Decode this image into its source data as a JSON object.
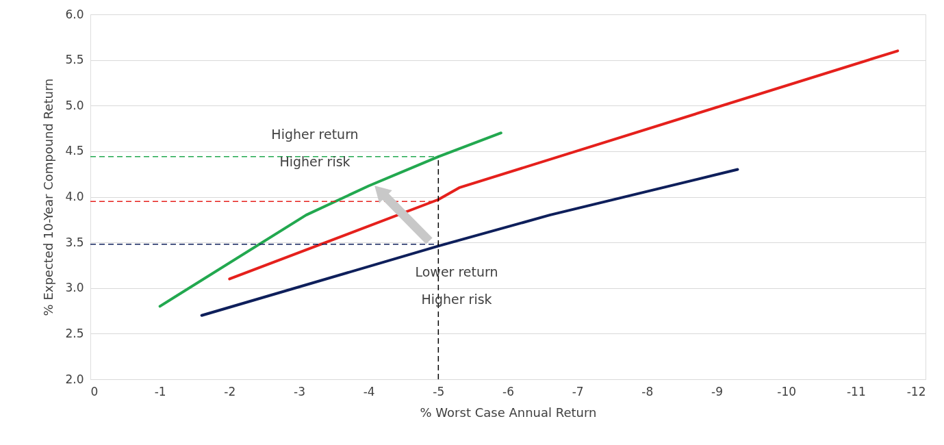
{
  "chart_data": {
    "type": "line",
    "xlabel": "% Worst Case Annual Return",
    "ylabel": "% Expected 10-Year Compound Return",
    "xlim": [
      0,
      -12
    ],
    "xticks": [
      0,
      -1,
      -2,
      -3,
      -4,
      -5,
      -6,
      -7,
      -8,
      -9,
      -10,
      -11,
      -12
    ],
    "ylim": [
      2.0,
      6.0
    ],
    "yticks": [
      {
        "value": 2.0,
        "label": "2.0"
      },
      {
        "value": 2.5,
        "label": "2.5"
      },
      {
        "value": 3.0,
        "label": "3.0"
      },
      {
        "value": 3.5,
        "label": "3.5"
      },
      {
        "value": 4.0,
        "label": "4.0"
      },
      {
        "value": 4.5,
        "label": "4.5"
      },
      {
        "value": 5.0,
        "label": "5.0"
      },
      {
        "value": 5.5,
        "label": "5.5"
      },
      {
        "value": 6.0,
        "label": "6.0"
      }
    ],
    "grid": "y",
    "legend": false,
    "marker": "none",
    "line_style": "solid",
    "series": [
      {
        "color": "#22a84f",
        "x": [
          -1.0,
          -3.1,
          -4.0,
          -5.0,
          -5.9
        ],
        "values": [
          2.8,
          3.8,
          4.12,
          4.44,
          4.7
        ]
      },
      {
        "color": "#e5201c",
        "x": [
          -2.0,
          -5.0,
          -5.3,
          -11.6
        ],
        "values": [
          3.1,
          3.97,
          4.1,
          5.6
        ]
      },
      {
        "color": "#0e1f5b",
        "x": [
          -1.6,
          -5.0,
          -6.6,
          -9.3
        ],
        "values": [
          2.7,
          3.46,
          3.8,
          4.3
        ]
      }
    ],
    "ref_lines": [
      {
        "axis": "y",
        "value": 4.44,
        "color": "#22a84f",
        "line_style": "dashed"
      },
      {
        "axis": "y",
        "value": 3.95,
        "color": "#e5201c",
        "line_style": "dashed"
      },
      {
        "axis": "y",
        "value": 3.48,
        "color": "#0e1f5b",
        "line_style": "dashed"
      },
      {
        "axis": "x",
        "value": -5,
        "color": "#000000",
        "line_style": "dashed"
      }
    ],
    "annotations": [
      "Higher return",
      "Higher risk",
      "Lower return",
      "Higher risk"
    ]
  }
}
